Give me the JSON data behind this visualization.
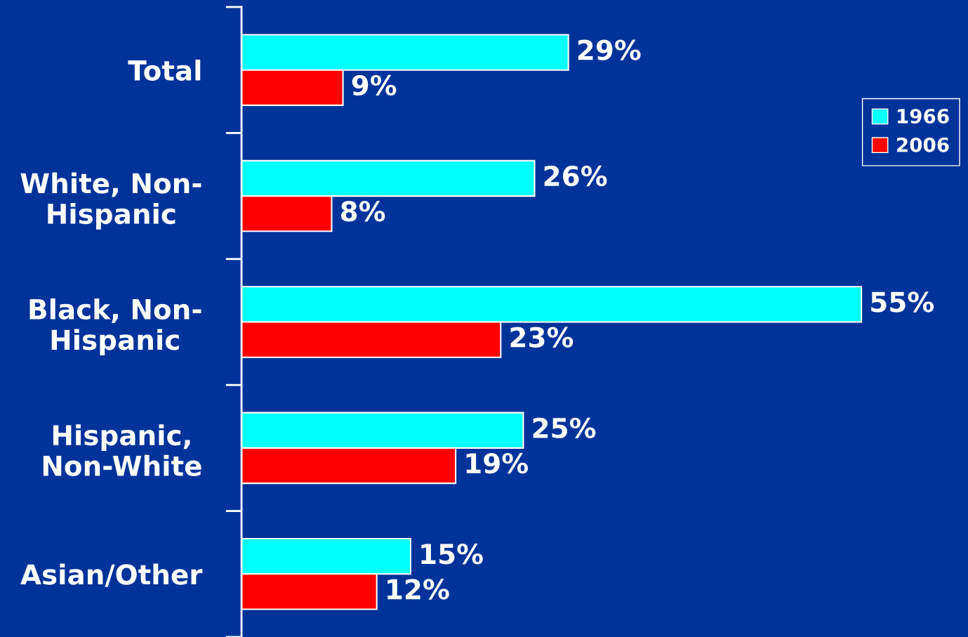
{
  "chart_data": {
    "type": "bar",
    "orientation": "horizontal",
    "categories": [
      "Total",
      "White, Non-\nHispanic",
      "Black, Non-\nHispanic",
      "Hispanic,\nNon-White",
      "Asian/Other"
    ],
    "series": [
      {
        "name": "1966",
        "color": "#00ffff",
        "values": [
          29,
          26,
          55,
          25,
          15
        ],
        "value_labels": [
          "29%",
          "26%",
          "55%",
          "25%",
          "15%"
        ]
      },
      {
        "name": "2006",
        "color": "#ff0000",
        "values": [
          9,
          8,
          23,
          19,
          12
        ],
        "value_labels": [
          "9%",
          "8%",
          "23%",
          "19%",
          "12%"
        ]
      }
    ],
    "legend": "top right",
    "grid": false
  }
}
